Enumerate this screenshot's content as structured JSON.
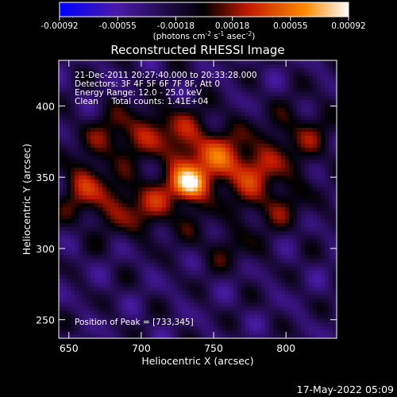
{
  "chart_data": {
    "type": "heatmap",
    "title": "Reconstructed RHESSI Image",
    "xlabel": "Heliocentric X (arcsec)",
    "ylabel": "Heliocentric Y (arcsec)",
    "xlim": [
      643,
      835
    ],
    "ylim": [
      237,
      432
    ],
    "x_ticks": [
      650,
      700,
      750,
      800
    ],
    "y_ticks": [
      250,
      300,
      350,
      400
    ],
    "colorbar": {
      "range": [
        -0.00092,
        0.00092
      ],
      "tick_values": [
        -0.00092,
        -0.00055,
        -0.00018,
        0.00018,
        0.00055,
        0.00092
      ],
      "tick_labels": [
        "-0.00092",
        "-0.00055",
        "-0.00018",
        "0.00018",
        "0.00055",
        "0.00092"
      ],
      "unit_text": "(photons cm",
      "unit_exp1": "-2",
      "unit_mid": " s",
      "unit_exp2": "-1",
      "unit_mid2": " asec",
      "unit_exp3": "-2",
      "unit_end": ")",
      "colors": [
        "#0000ff",
        "#4a1aa8",
        "#000000",
        "#c01800",
        "#ff8a00",
        "#ffffff"
      ]
    },
    "info_lines": [
      "21-Dec-2011 20:27:40.000 to 20:33:28.000",
      "Detectors: 3F 4F 5F 6F 7F 8F, Att 0",
      "Energy Range: 12.0 - 25.0 keV",
      "Clean     Total counts: 1.41E+04"
    ],
    "peak_label": "Position of Peak = [733,345]",
    "peak": {
      "x": 733,
      "y": 345
    },
    "emission_blobs": [
      {
        "x": 733,
        "y": 345,
        "amp": 1.0,
        "sx": 8,
        "sy": 8
      },
      {
        "x": 745,
        "y": 365,
        "amp": 0.55,
        "sx": 22,
        "sy": 14
      },
      {
        "x": 700,
        "y": 330,
        "amp": 0.5,
        "sx": 26,
        "sy": 14
      },
      {
        "x": 660,
        "y": 345,
        "amp": 0.45,
        "sx": 12,
        "sy": 14
      },
      {
        "x": 775,
        "y": 355,
        "amp": 0.45,
        "sx": 20,
        "sy": 12
      },
      {
        "x": 710,
        "y": 385,
        "amp": 0.4,
        "sx": 25,
        "sy": 12
      },
      {
        "x": 810,
        "y": 380,
        "amp": 0.35,
        "sx": 18,
        "sy": 14
      },
      {
        "x": 790,
        "y": 330,
        "amp": 0.35,
        "sx": 18,
        "sy": 12
      },
      {
        "x": 680,
        "y": 375,
        "amp": 0.3,
        "sx": 14,
        "sy": 10
      },
      {
        "x": 760,
        "y": 300,
        "amp": 0.25,
        "sx": 16,
        "sy": 10
      }
    ]
  },
  "footer_timestamp": "17-May-2022 05:09"
}
